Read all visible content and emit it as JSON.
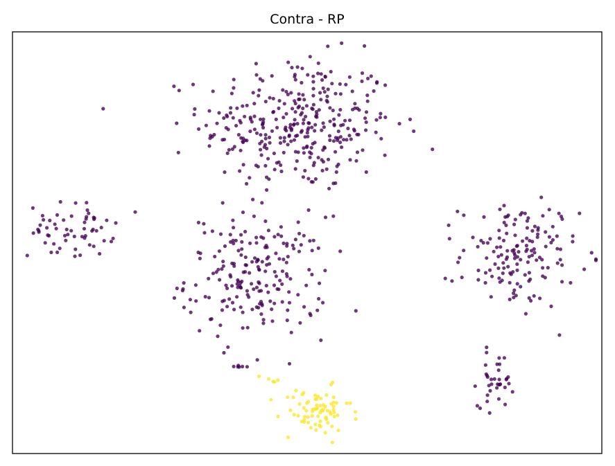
{
  "chart_data": {
    "type": "scatter",
    "title": "Contra - RP",
    "xlabel": "",
    "ylabel": "",
    "xlim": [
      0,
      100
    ],
    "ylim": [
      0,
      100
    ],
    "grid": false,
    "ticks_visible": false,
    "colors": {
      "class_0": "#440154",
      "class_1": "#fde725",
      "frame": "#000000",
      "background": "#ffffff"
    },
    "series": [
      {
        "class": 0,
        "clusters": [
          {
            "cx": 48.5,
            "cy": 78.0,
            "sx": 8.2,
            "sy": 8.0,
            "count": 330
          },
          {
            "cx": 41.5,
            "cy": 42.0,
            "sx": 6.0,
            "sy": 7.2,
            "count": 200
          },
          {
            "cx": 10.0,
            "cy": 53.0,
            "sx": 3.6,
            "sy": 3.2,
            "count": 60
          },
          {
            "cx": 86.0,
            "cy": 47.0,
            "sx": 5.0,
            "sy": 6.3,
            "count": 150
          },
          {
            "cx": 82.0,
            "cy": 17.5,
            "sx": 1.5,
            "sy": 3.2,
            "count": 35
          },
          {
            "cx": 38.5,
            "cy": 20.5,
            "sx": 0.8,
            "sy": 0.7,
            "count": 6
          }
        ]
      },
      {
        "class": 1,
        "clusters": [
          {
            "cx": 51.5,
            "cy": 10.0,
            "sx": 3.0,
            "sy": 2.8,
            "count": 75
          },
          {
            "cx": 43.5,
            "cy": 17.5,
            "sx": 0.9,
            "sy": 0.8,
            "count": 5
          }
        ]
      }
    ]
  }
}
